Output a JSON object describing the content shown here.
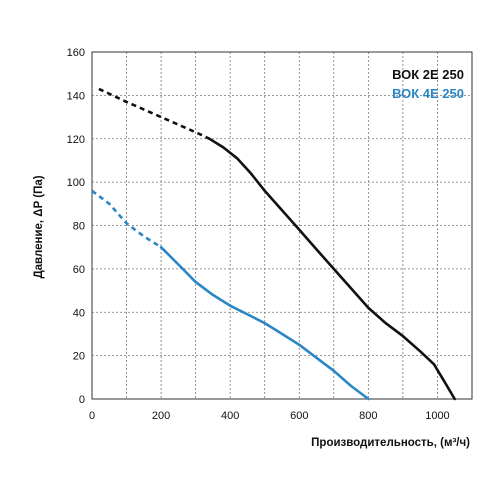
{
  "chart_data": {
    "type": "line",
    "xlabel": "Производительность, (м³/ч)",
    "ylabel": "Давление, ΔP (Па)",
    "xlim": [
      0,
      1100
    ],
    "ylim": [
      0,
      160
    ],
    "x_ticks": [
      "0",
      "200",
      "400",
      "600",
      "800",
      "1000"
    ],
    "x_tick_values": [
      0,
      200,
      400,
      600,
      800,
      1000
    ],
    "y_ticks": [
      "0",
      "20",
      "40",
      "60",
      "80",
      "100",
      "120",
      "140",
      "160"
    ],
    "y_tick_values": [
      0,
      20,
      40,
      60,
      80,
      100,
      120,
      140,
      160
    ],
    "grid": true,
    "legend_position": "top-right",
    "series": [
      {
        "name": "ВОК 2Е 250",
        "color": "#111111",
        "dashed_points": [
          [
            20,
            143
          ],
          [
            100,
            137
          ],
          [
            200,
            130
          ],
          [
            300,
            123
          ],
          [
            340,
            120
          ]
        ],
        "points": [
          [
            340,
            120
          ],
          [
            380,
            116
          ],
          [
            420,
            111
          ],
          [
            460,
            104
          ],
          [
            500,
            96
          ],
          [
            550,
            87
          ],
          [
            600,
            78
          ],
          [
            650,
            69
          ],
          [
            700,
            60
          ],
          [
            750,
            51
          ],
          [
            800,
            42
          ],
          [
            850,
            35
          ],
          [
            900,
            29
          ],
          [
            950,
            22
          ],
          [
            990,
            16
          ],
          [
            1020,
            8
          ],
          [
            1050,
            0
          ]
        ]
      },
      {
        "name": "ВОК 4Е 250",
        "color": "#2a86c4",
        "dashed_points": [
          [
            0,
            96
          ],
          [
            50,
            90
          ],
          [
            100,
            81
          ],
          [
            150,
            75
          ],
          [
            200,
            70
          ]
        ],
        "points": [
          [
            200,
            70
          ],
          [
            250,
            62
          ],
          [
            300,
            54
          ],
          [
            350,
            48
          ],
          [
            400,
            43
          ],
          [
            450,
            39
          ],
          [
            500,
            35
          ],
          [
            550,
            30
          ],
          [
            600,
            25
          ],
          [
            650,
            19
          ],
          [
            700,
            13
          ],
          [
            750,
            6
          ],
          [
            800,
            0
          ]
        ]
      }
    ]
  }
}
